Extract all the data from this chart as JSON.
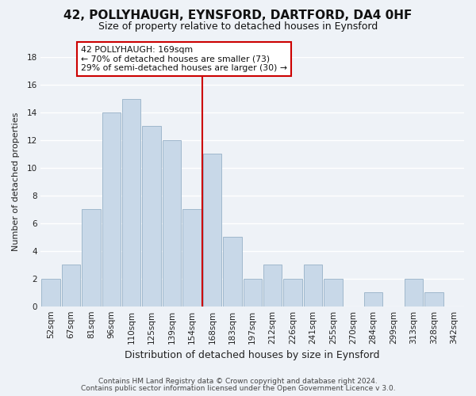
{
  "title": "42, POLLYHAUGH, EYNSFORD, DARTFORD, DA4 0HF",
  "subtitle": "Size of property relative to detached houses in Eynsford",
  "xlabel": "Distribution of detached houses by size in Eynsford",
  "ylabel": "Number of detached properties",
  "bin_labels": [
    "52sqm",
    "67sqm",
    "81sqm",
    "96sqm",
    "110sqm",
    "125sqm",
    "139sqm",
    "154sqm",
    "168sqm",
    "183sqm",
    "197sqm",
    "212sqm",
    "226sqm",
    "241sqm",
    "255sqm",
    "270sqm",
    "284sqm",
    "299sqm",
    "313sqm",
    "328sqm",
    "342sqm"
  ],
  "bar_heights": [
    2,
    3,
    7,
    14,
    15,
    13,
    12,
    7,
    11,
    5,
    2,
    3,
    2,
    3,
    2,
    0,
    1,
    0,
    2,
    1,
    0
  ],
  "bar_color": "#c8d8e8",
  "bar_edge_color": "#a0b8cc",
  "marker_index": 8,
  "marker_color": "#cc0000",
  "annotation_title": "42 POLLYHAUGH: 169sqm",
  "annotation_line1": "← 70% of detached houses are smaller (73)",
  "annotation_line2": "29% of semi-detached houses are larger (30) →",
  "annotation_box_color": "#ffffff",
  "annotation_box_edge": "#cc0000",
  "ylim": [
    0,
    18
  ],
  "yticks": [
    0,
    2,
    4,
    6,
    8,
    10,
    12,
    14,
    16,
    18
  ],
  "footer1": "Contains HM Land Registry data © Crown copyright and database right 2024.",
  "footer2": "Contains public sector information licensed under the Open Government Licence v 3.0.",
  "background_color": "#eef2f7",
  "grid_color": "#ffffff",
  "title_fontsize": 11,
  "subtitle_fontsize": 9,
  "tick_fontsize": 7.5,
  "ylabel_fontsize": 8,
  "xlabel_fontsize": 9,
  "footer_fontsize": 6.5
}
